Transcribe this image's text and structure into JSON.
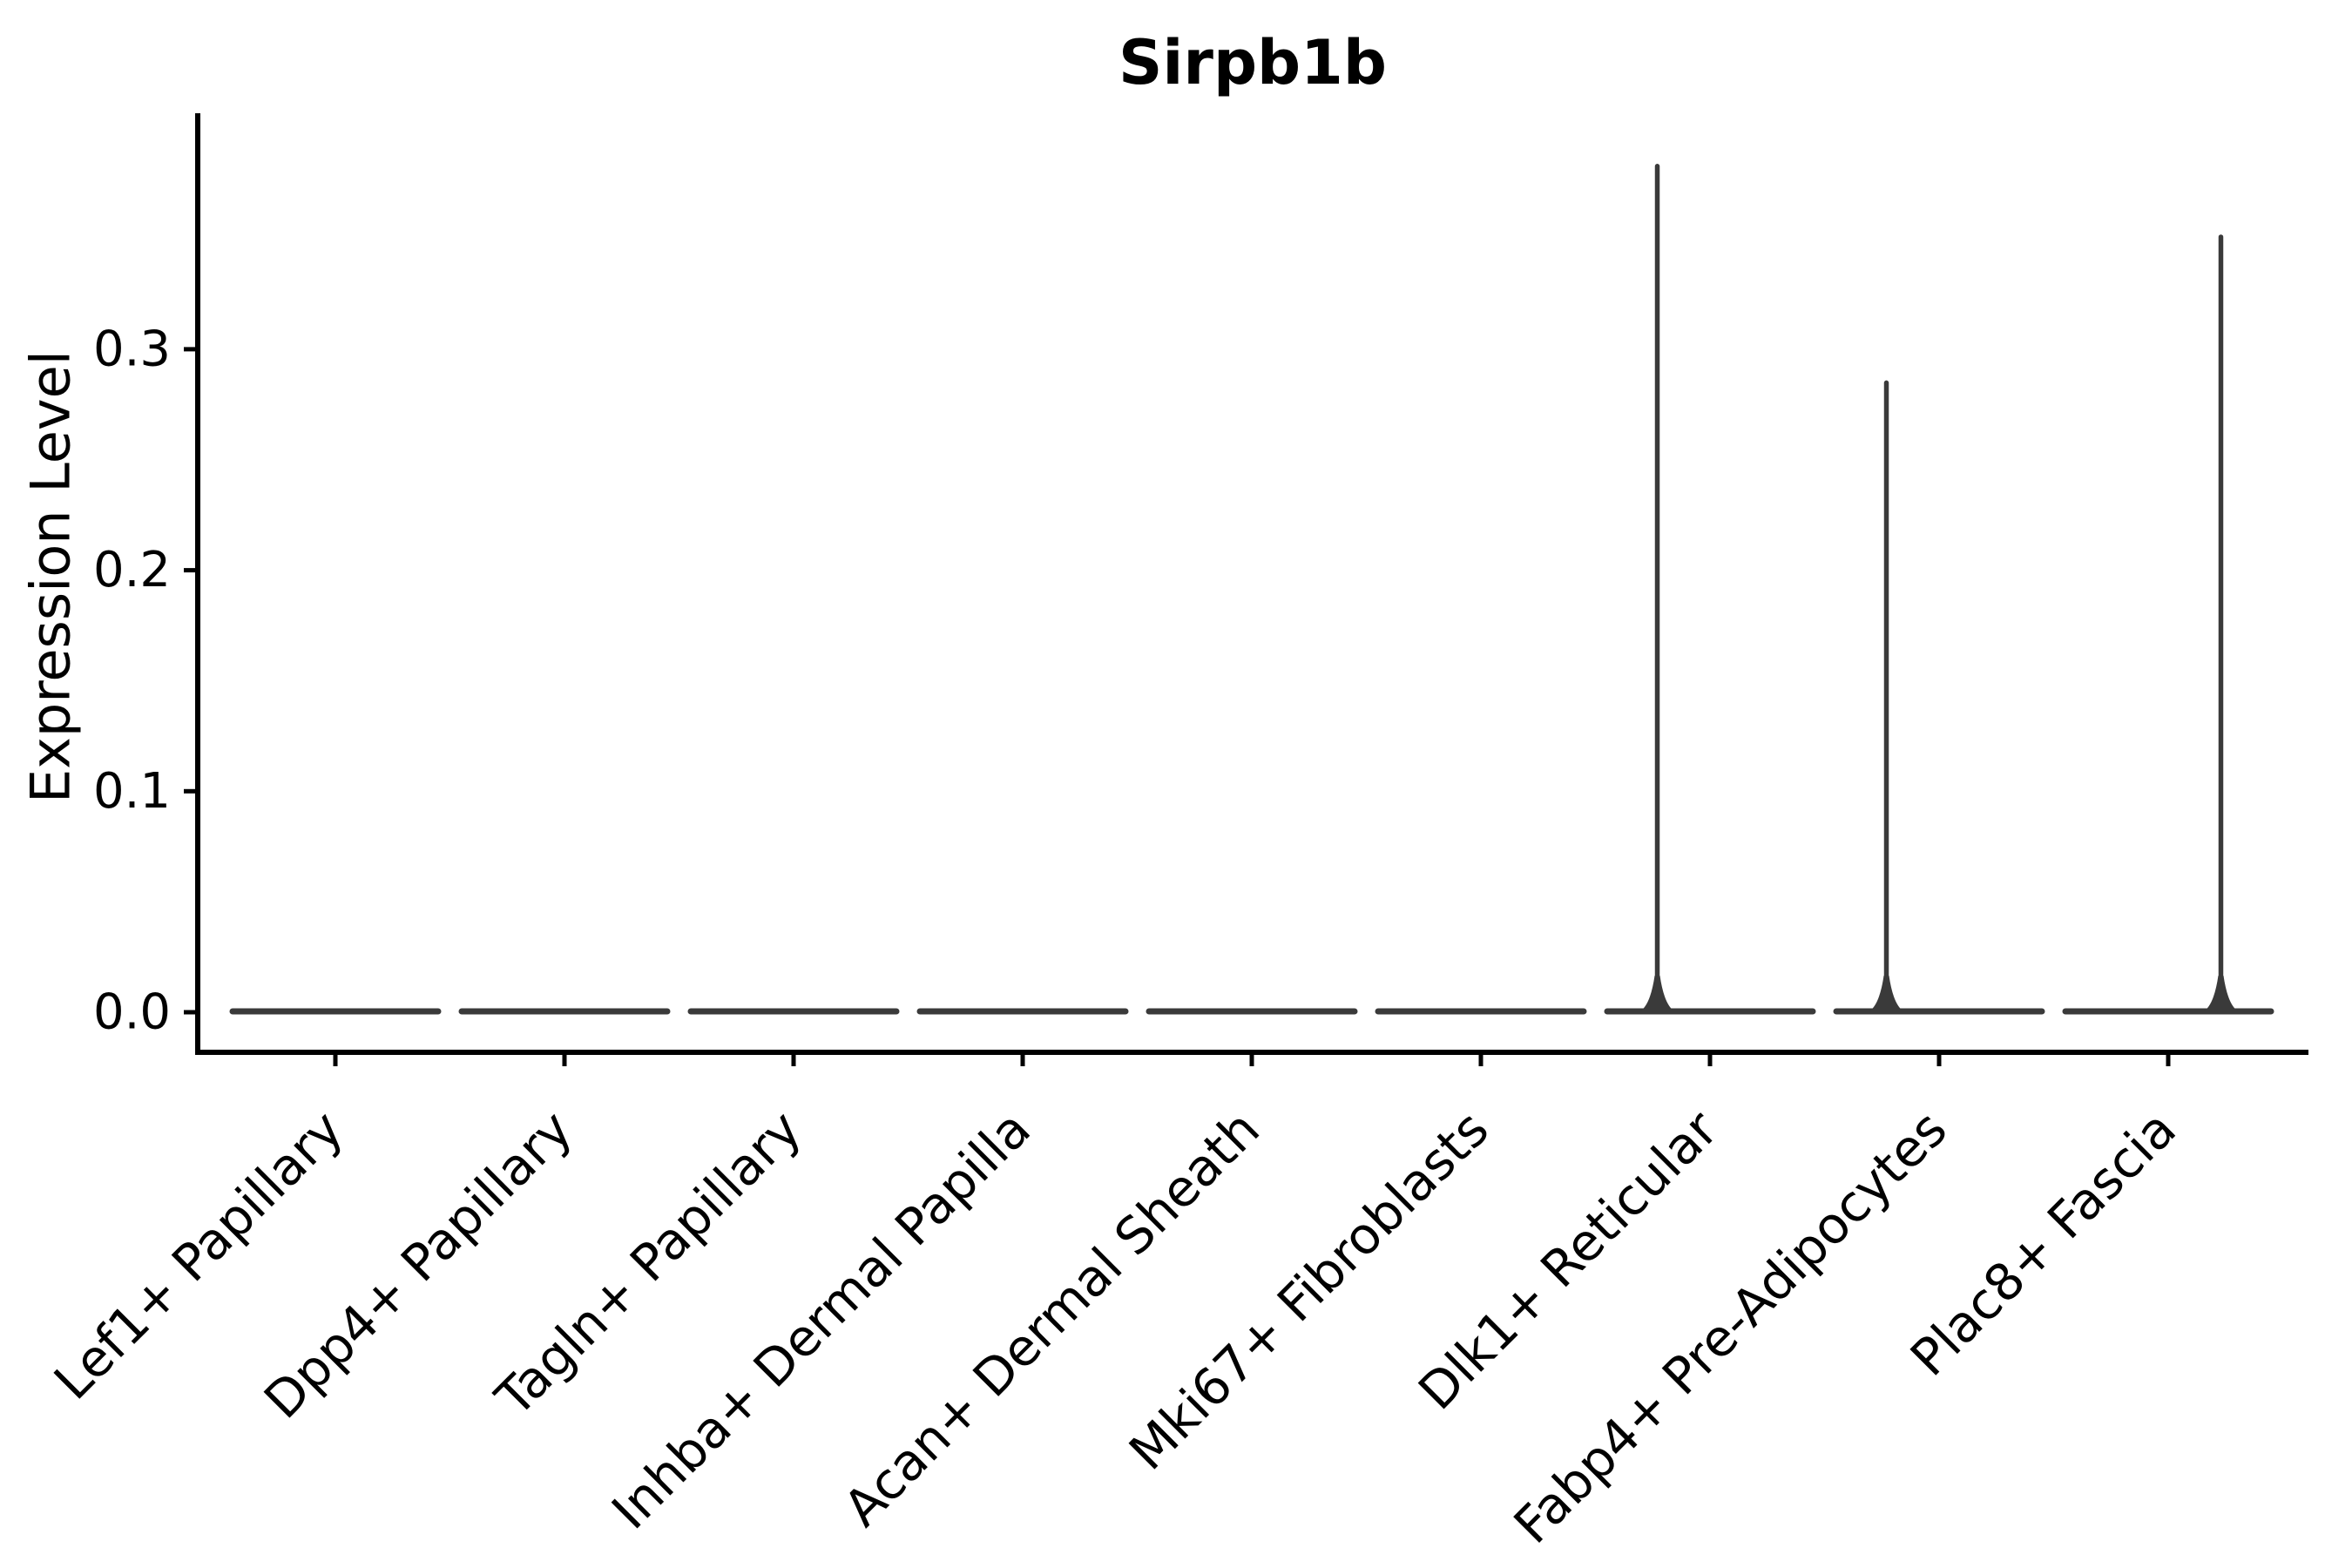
{
  "figure": {
    "title": "Sirpb1b",
    "ylabel": "Expression Level"
  },
  "colors": {
    "background": "#ffffff",
    "axis": "#000000",
    "text": "#000000",
    "violin": "#3a3a3a"
  },
  "chart_data": {
    "type": "violin",
    "title": "Sirpb1b",
    "xlabel": "",
    "ylabel": "Expression Level",
    "categories": [
      "Lef1+ Papillary",
      "Dpp4+ Papillary",
      "Tagln+ Papillary",
      "Inhba+ Dermal Papilla",
      "Acan+ Dermal Sheath",
      "Mki67+ Fibroblasts",
      "Dlk1+ Reticular",
      "Fabp4+ Pre-Adipocytes",
      "Plac8+ Fascia"
    ],
    "violins": [
      {
        "label": "Lef1+ Papillary",
        "max_expression": 0,
        "spike_offset_frac": 0
      },
      {
        "label": "Dpp4+ Papillary",
        "max_expression": 0,
        "spike_offset_frac": 0
      },
      {
        "label": "Tagln+ Papillary",
        "max_expression": 0,
        "spike_offset_frac": 0
      },
      {
        "label": "Inhba+ Dermal Papilla",
        "max_expression": 0,
        "spike_offset_frac": 0
      },
      {
        "label": "Acan+ Dermal Sheath",
        "max_expression": 0,
        "spike_offset_frac": 0
      },
      {
        "label": "Mki67+ Fibroblasts",
        "max_expression": 0,
        "spike_offset_frac": 0
      },
      {
        "label": "Dlk1+ Reticular",
        "max_expression": 0.384,
        "spike_offset_frac": -0.23
      },
      {
        "label": "Fabp4+ Pre-Adipocytes",
        "max_expression": 0.286,
        "spike_offset_frac": -0.23
      },
      {
        "label": "Plac8+ Fascia",
        "max_expression": 0.352,
        "spike_offset_frac": 0.23
      }
    ],
    "yticks": [
      0.0,
      0.1,
      0.2,
      0.3
    ],
    "ytick_labels": [
      "0.0",
      "0.1",
      "0.2",
      "0.3"
    ],
    "ylim": [
      -0.018,
      0.406
    ],
    "baseline_value": 0,
    "grid": false,
    "legend": null
  }
}
